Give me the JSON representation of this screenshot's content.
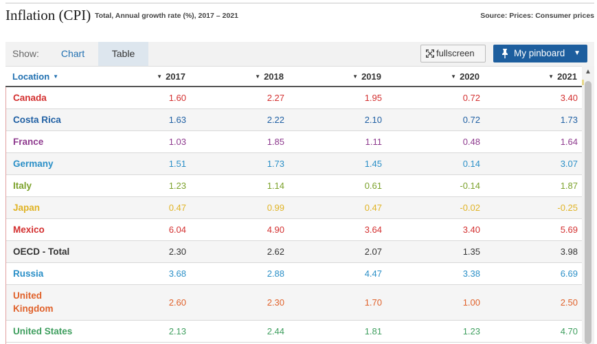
{
  "header": {
    "title": "Inflation (CPI)",
    "subtitle": "Total, Annual growth rate (%), 2017 – 2021",
    "source": "Source: Prices: Consumer prices"
  },
  "toolbar": {
    "show_label": "Show:",
    "tabs": [
      {
        "label": "Chart",
        "active": false
      },
      {
        "label": "Table",
        "active": true
      }
    ],
    "fullscreen_label": "fullscreen",
    "pinboard_label": "My pinboard"
  },
  "icons": {
    "fullscreen": "fullscreen-icon",
    "pin": "pin-icon",
    "caret": "caret-down-icon",
    "sort": "sort-triangle-icon"
  },
  "chart_data": {
    "type": "table",
    "title": "Inflation (CPI)",
    "subtitle": "Total, Annual growth rate (%), 2017 – 2021",
    "columns": [
      "Location",
      "2017",
      "2018",
      "2019",
      "2020",
      "2021"
    ],
    "rows": [
      {
        "name": "Canada",
        "color": "#d32f2f",
        "values": [
          "1.60",
          "2.27",
          "1.95",
          "0.72",
          "3.40"
        ]
      },
      {
        "name": "Costa Rica",
        "color": "#1f5fa3",
        "values": [
          "1.63",
          "2.22",
          "2.10",
          "0.72",
          "1.73"
        ]
      },
      {
        "name": "France",
        "color": "#8e3a8e",
        "values": [
          "1.03",
          "1.85",
          "1.11",
          "0.48",
          "1.64"
        ]
      },
      {
        "name": "Germany",
        "color": "#2a8fc7",
        "values": [
          "1.51",
          "1.73",
          "1.45",
          "0.14",
          "3.07"
        ]
      },
      {
        "name": "Italy",
        "color": "#7ba12a",
        "values": [
          "1.23",
          "1.14",
          "0.61",
          "-0.14",
          "1.87"
        ]
      },
      {
        "name": "Japan",
        "color": "#e0b324",
        "values": [
          "0.47",
          "0.99",
          "0.47",
          "-0.02",
          "-0.25"
        ]
      },
      {
        "name": "Mexico",
        "color": "#d32f2f",
        "values": [
          "6.04",
          "4.90",
          "3.64",
          "3.40",
          "5.69"
        ]
      },
      {
        "name": "OECD - Total",
        "color": "#333333",
        "values": [
          "2.30",
          "2.62",
          "2.07",
          "1.35",
          "3.98"
        ]
      },
      {
        "name": "Russia",
        "color": "#2a8fc7",
        "values": [
          "3.68",
          "2.88",
          "4.47",
          "3.38",
          "6.69"
        ]
      },
      {
        "name": "United Kingdom",
        "color": "#e0612a",
        "values": [
          "2.60",
          "2.30",
          "1.70",
          "1.00",
          "2.50"
        ]
      },
      {
        "name": "United States",
        "color": "#3e9e5e",
        "values": [
          "2.13",
          "2.44",
          "1.81",
          "1.23",
          "4.70"
        ]
      }
    ]
  }
}
